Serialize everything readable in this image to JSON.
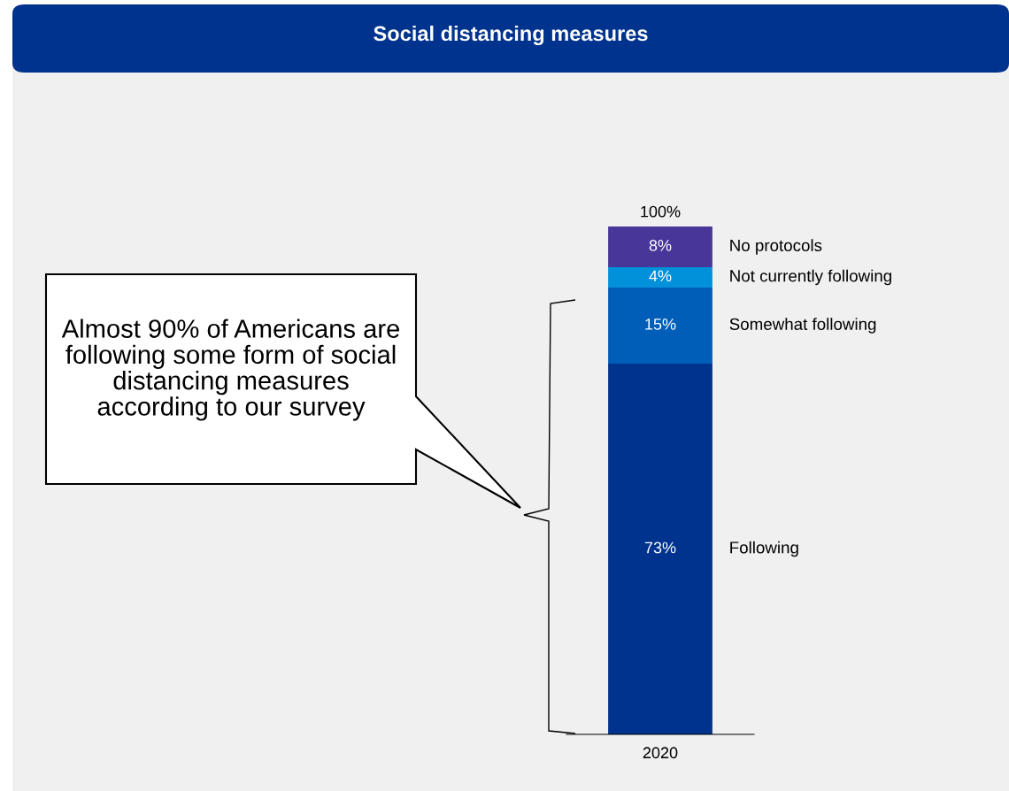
{
  "chart_data": {
    "type": "bar",
    "title": "Social distancing measures",
    "stacked": true,
    "categories": [
      "2020"
    ],
    "series": [
      {
        "name": "Following",
        "color": "#00338d",
        "values": [
          73
        ],
        "value_labels": [
          "73%"
        ]
      },
      {
        "name": "Somewhat following",
        "color": "#005eb8",
        "values": [
          15
        ],
        "value_labels": [
          "15%"
        ]
      },
      {
        "name": "Not currently following",
        "color": "#0091da",
        "values": [
          4
        ],
        "value_labels": [
          "4%"
        ]
      },
      {
        "name": "No protocols",
        "color": "#483698",
        "values": [
          8
        ],
        "value_labels": [
          "8%"
        ]
      }
    ],
    "totals": [
      "100%"
    ],
    "annotations": [
      "Almost 90% of Americans are following some form of social distancing measures according to our survey"
    ]
  }
}
